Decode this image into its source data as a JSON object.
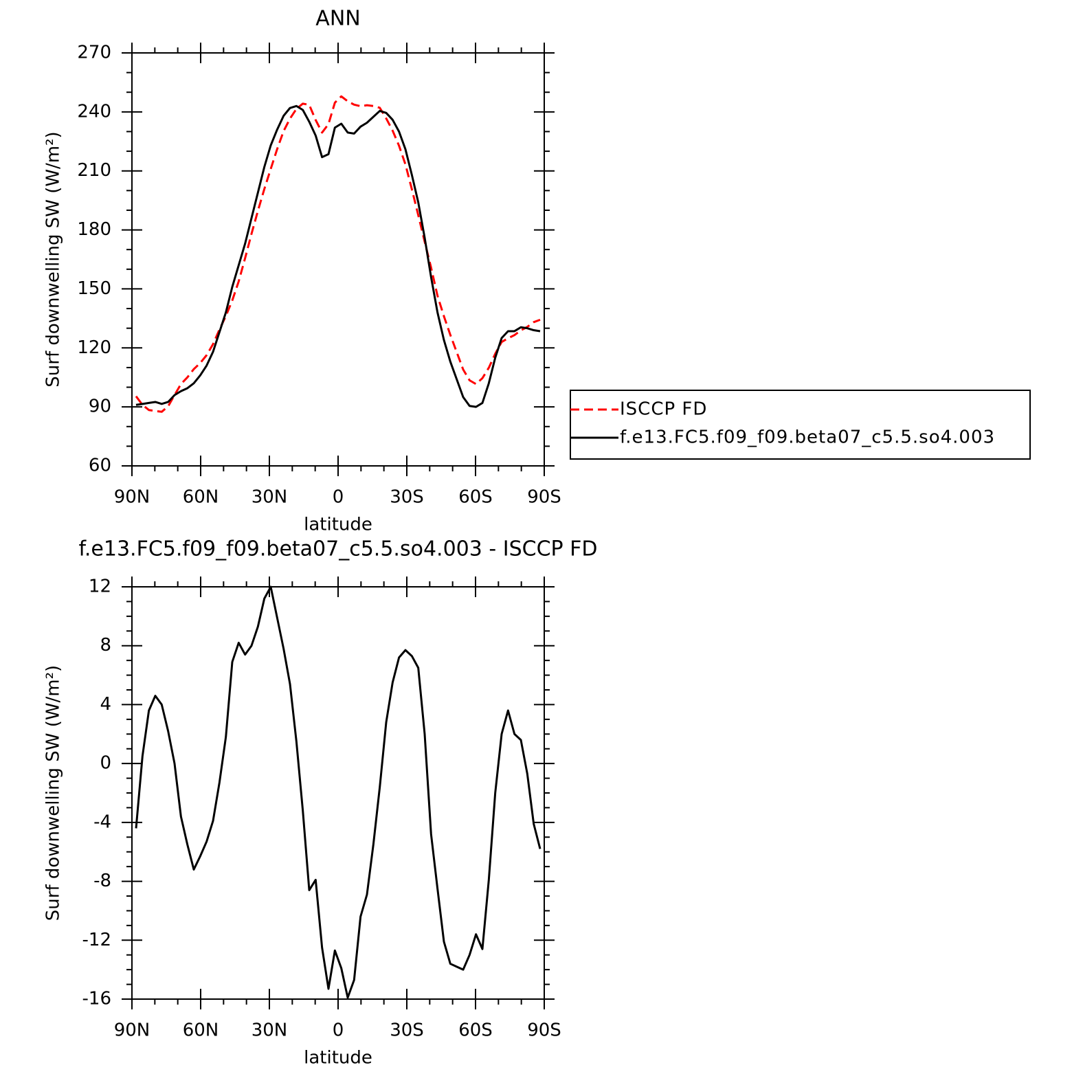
{
  "chart_data": [
    {
      "type": "line",
      "title": "ANN",
      "xlabel": "latitude",
      "ylabel": "Surf downwelling SW (W/m²)",
      "x": [
        88.2,
        85.4,
        82.6,
        79.8,
        77.0,
        74.2,
        71.4,
        68.6,
        65.8,
        63.0,
        60.2,
        57.4,
        54.6,
        51.8,
        49.0,
        46.2,
        43.4,
        40.6,
        37.8,
        35.0,
        32.2,
        29.4,
        26.6,
        23.8,
        21.0,
        18.2,
        15.4,
        12.6,
        9.8,
        7.0,
        4.2,
        1.4,
        -1.4,
        -4.2,
        -7.0,
        -9.8,
        -12.6,
        -15.4,
        -18.2,
        -21.0,
        -23.8,
        -26.6,
        -29.4,
        -32.2,
        -35.0,
        -37.8,
        -40.6,
        -43.4,
        -46.2,
        -49.0,
        -51.8,
        -54.6,
        -57.4,
        -60.2,
        -63.0,
        -65.8,
        -68.6,
        -71.4,
        -74.2,
        -77.0,
        -79.8,
        -82.6,
        -85.4,
        -88.2
      ],
      "xlim": [
        90,
        -90
      ],
      "xticks": [
        {
          "value": 90,
          "label": "90N"
        },
        {
          "value": 60,
          "label": "60N"
        },
        {
          "value": 30,
          "label": "30N"
        },
        0,
        {
          "value": -30,
          "label": "30S"
        },
        {
          "value": -60,
          "label": "60S"
        },
        {
          "value": -90,
          "label": "90S"
        }
      ],
      "ylim": [
        60,
        270
      ],
      "yticks": [
        60,
        90,
        120,
        150,
        180,
        210,
        240,
        270
      ],
      "legend": "right",
      "series": [
        {
          "name": "ISCCP FD",
          "color": "#ff0000",
          "style": "dashed",
          "values": [
            95.4,
            91,
            88.4,
            87.9,
            87.5,
            90.3,
            96,
            101.6,
            105,
            109.2,
            112.3,
            116.3,
            121.9,
            129.3,
            136.2,
            144.1,
            153.8,
            165.6,
            178,
            189.7,
            200.8,
            211,
            221.1,
            230.2,
            236.6,
            241.5,
            244.2,
            243.6,
            235.9,
            229.5,
            233.8,
            244.7,
            247.9,
            245.4,
            243.7,
            242.9,
            243.4,
            243,
            242.1,
            236.7,
            230.5,
            222.8,
            213.3,
            200.7,
            187.5,
            174,
            160.8,
            146.5,
            136.1,
            126.6,
            117.8,
            109,
            103.5,
            101.6,
            104.6,
            109.9,
            117,
            123,
            124.9,
            126.5,
            128.9,
            130.7,
            133.1,
            134.3
          ]
        },
        {
          "name": "f.e13.FC5.f09_f09.beta07_c5.5.so4.003",
          "color": "#000000",
          "style": "solid",
          "values": [
            91,
            91.5,
            92,
            92.5,
            91.5,
            92.5,
            96,
            98,
            99.5,
            102,
            106,
            111,
            118,
            128,
            138,
            151,
            162,
            173,
            186,
            199,
            212,
            223,
            231,
            238,
            242,
            243,
            241,
            235,
            228,
            217,
            218.5,
            232,
            234,
            229.5,
            229,
            232.5,
            234.5,
            237.5,
            240.5,
            239.5,
            236,
            230,
            221,
            208,
            194,
            176,
            156,
            138,
            124,
            113,
            104,
            95,
            90.5,
            90,
            92,
            102,
            115,
            125,
            128.5,
            128.5,
            130.5,
            130,
            129,
            128.5
          ]
        }
      ]
    },
    {
      "type": "line",
      "title": "f.e13.FC5.f09_f09.beta07_c5.5.so4.003 - ISCCP FD",
      "xlabel": "latitude",
      "ylabel": "Surf downwelling SW (W/m²)",
      "x": [
        88.2,
        85.4,
        82.6,
        79.8,
        77.0,
        74.2,
        71.4,
        68.6,
        65.8,
        63.0,
        60.2,
        57.4,
        54.6,
        51.8,
        49.0,
        46.2,
        43.4,
        40.6,
        37.8,
        35.0,
        32.2,
        29.4,
        26.6,
        23.8,
        21.0,
        18.2,
        15.4,
        12.6,
        9.8,
        7.0,
        4.2,
        1.4,
        -1.4,
        -4.2,
        -7.0,
        -9.8,
        -12.6,
        -15.4,
        -18.2,
        -21.0,
        -23.8,
        -26.6,
        -29.4,
        -32.2,
        -35.0,
        -37.8,
        -40.6,
        -43.4,
        -46.2,
        -49.0,
        -51.8,
        -54.6,
        -57.4,
        -60.2,
        -63.0,
        -65.8,
        -68.6,
        -71.4,
        -74.2,
        -77.0,
        -79.8,
        -82.6,
        -85.4,
        -88.2
      ],
      "xlim": [
        90,
        -90
      ],
      "xticks": [
        {
          "value": 90,
          "label": "90N"
        },
        {
          "value": 60,
          "label": "60N"
        },
        {
          "value": 30,
          "label": "30N"
        },
        0,
        {
          "value": -30,
          "label": "30S"
        },
        {
          "value": -60,
          "label": "60S"
        },
        {
          "value": -90,
          "label": "90S"
        }
      ],
      "ylim": [
        -16,
        12
      ],
      "yticks": [
        -16,
        -12,
        -8,
        -4,
        0,
        4,
        8,
        12
      ],
      "series": [
        {
          "color": "#000000",
          "style": "solid",
          "values": [
            -4.4,
            0.5,
            3.6,
            4.6,
            4.0,
            2.2,
            0,
            -3.6,
            -5.5,
            -7.2,
            -6.3,
            -5.3,
            -3.9,
            -1.3,
            1.8,
            6.9,
            8.2,
            7.4,
            8.0,
            9.3,
            11.2,
            12.0,
            9.9,
            7.8,
            5.4,
            1.5,
            -3.2,
            -8.6,
            -7.9,
            -12.5,
            -15.3,
            -12.7,
            -13.9,
            -15.9,
            -14.7,
            -10.4,
            -8.9,
            -5.5,
            -1.6,
            2.8,
            5.5,
            7.2,
            7.7,
            7.3,
            6.5,
            2.0,
            -4.8,
            -8.5,
            -12.1,
            -13.6,
            -13.8,
            -14.0,
            -13.0,
            -11.6,
            -12.6,
            -7.9,
            -2.0,
            2.0,
            3.6,
            2.0,
            1.6,
            -0.7,
            -4.1,
            -5.8
          ]
        }
      ]
    }
  ]
}
